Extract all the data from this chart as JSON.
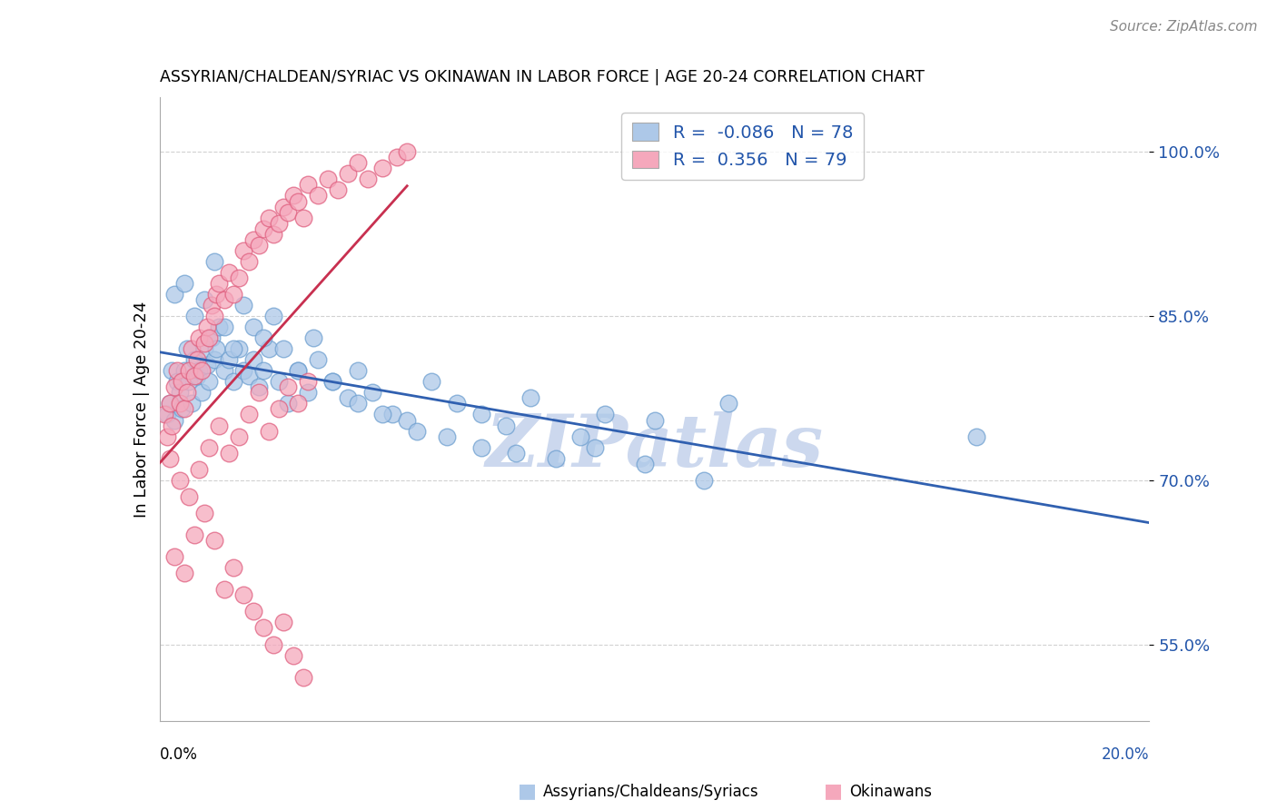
{
  "title": "ASSYRIAN/CHALDEAN/SYRIAC VS OKINAWAN IN LABOR FORCE | AGE 20-24 CORRELATION CHART",
  "source_text": "Source: ZipAtlas.com",
  "ylabel": "In Labor Force | Age 20-24",
  "xlim": [
    0.0,
    20.0
  ],
  "ylim": [
    48.0,
    105.0
  ],
  "yticks": [
    55.0,
    70.0,
    85.0,
    100.0
  ],
  "ytick_labels": [
    "55.0%",
    "70.0%",
    "85.0%",
    "100.0%"
  ],
  "blue_R": -0.086,
  "blue_N": 78,
  "pink_R": 0.356,
  "pink_N": 79,
  "blue_color": "#adc8e8",
  "blue_edge": "#6fa0d0",
  "pink_color": "#f5a8bc",
  "pink_edge": "#e06080",
  "blue_line_color": "#3060b0",
  "pink_line_color": "#c83050",
  "watermark": "ZIPatlas",
  "watermark_color": "#ccd8ee",
  "footer_label_left": "Assyrians/Chaldeans/Syriacs",
  "footer_label_right": "Okinawans",
  "blue_scatter_x": [
    0.15,
    0.2,
    0.25,
    0.3,
    0.35,
    0.4,
    0.45,
    0.5,
    0.55,
    0.6,
    0.65,
    0.7,
    0.75,
    0.8,
    0.85,
    0.9,
    0.95,
    1.0,
    1.05,
    1.1,
    1.15,
    1.2,
    1.3,
    1.4,
    1.5,
    1.6,
    1.7,
    1.8,
    1.9,
    2.0,
    2.1,
    2.2,
    2.4,
    2.6,
    2.8,
    3.0,
    3.2,
    3.5,
    3.8,
    4.0,
    4.3,
    4.7,
    5.0,
    5.5,
    6.0,
    6.5,
    7.0,
    7.5,
    8.5,
    9.0,
    10.0,
    11.5,
    16.5,
    0.3,
    0.5,
    0.7,
    0.9,
    1.1,
    1.3,
    1.5,
    1.7,
    1.9,
    2.1,
    2.3,
    2.5,
    2.8,
    3.1,
    3.5,
    4.0,
    4.5,
    5.2,
    5.8,
    6.5,
    7.2,
    8.0,
    8.8,
    9.8,
    11.0
  ],
  "blue_scatter_y": [
    76.0,
    77.0,
    80.0,
    75.5,
    79.0,
    78.0,
    76.5,
    80.0,
    82.0,
    79.0,
    77.0,
    81.0,
    79.5,
    80.0,
    78.0,
    82.0,
    80.5,
    79.0,
    83.0,
    81.0,
    82.0,
    84.0,
    80.0,
    81.0,
    79.0,
    82.0,
    80.0,
    79.5,
    81.0,
    78.5,
    80.0,
    82.0,
    79.0,
    77.0,
    80.0,
    78.0,
    81.0,
    79.0,
    77.5,
    80.0,
    78.0,
    76.0,
    75.5,
    79.0,
    77.0,
    76.0,
    75.0,
    77.5,
    74.0,
    76.0,
    75.5,
    77.0,
    74.0,
    87.0,
    88.0,
    85.0,
    86.5,
    90.0,
    84.0,
    82.0,
    86.0,
    84.0,
    83.0,
    85.0,
    82.0,
    80.0,
    83.0,
    79.0,
    77.0,
    76.0,
    74.5,
    74.0,
    73.0,
    72.5,
    72.0,
    73.0,
    71.5,
    70.0
  ],
  "pink_scatter_x": [
    0.1,
    0.15,
    0.2,
    0.25,
    0.3,
    0.35,
    0.4,
    0.45,
    0.5,
    0.55,
    0.6,
    0.65,
    0.7,
    0.75,
    0.8,
    0.85,
    0.9,
    0.95,
    1.0,
    1.05,
    1.1,
    1.15,
    1.2,
    1.3,
    1.4,
    1.5,
    1.6,
    1.7,
    1.8,
    1.9,
    2.0,
    2.1,
    2.2,
    2.3,
    2.4,
    2.5,
    2.6,
    2.7,
    2.8,
    2.9,
    3.0,
    3.2,
    3.4,
    3.6,
    3.8,
    4.0,
    4.2,
    4.5,
    4.8,
    5.0,
    0.2,
    0.4,
    0.6,
    0.8,
    1.0,
    1.2,
    1.4,
    1.6,
    1.8,
    2.0,
    2.2,
    2.4,
    2.6,
    2.8,
    3.0,
    0.3,
    0.5,
    0.7,
    0.9,
    1.1,
    1.3,
    1.5,
    1.7,
    1.9,
    2.1,
    2.3,
    2.5,
    2.7,
    2.9
  ],
  "pink_scatter_y": [
    76.0,
    74.0,
    77.0,
    75.0,
    78.5,
    80.0,
    77.0,
    79.0,
    76.5,
    78.0,
    80.0,
    82.0,
    79.5,
    81.0,
    83.0,
    80.0,
    82.5,
    84.0,
    83.0,
    86.0,
    85.0,
    87.0,
    88.0,
    86.5,
    89.0,
    87.0,
    88.5,
    91.0,
    90.0,
    92.0,
    91.5,
    93.0,
    94.0,
    92.5,
    93.5,
    95.0,
    94.5,
    96.0,
    95.5,
    94.0,
    97.0,
    96.0,
    97.5,
    96.5,
    98.0,
    99.0,
    97.5,
    98.5,
    99.5,
    100.0,
    72.0,
    70.0,
    68.5,
    71.0,
    73.0,
    75.0,
    72.5,
    74.0,
    76.0,
    78.0,
    74.5,
    76.5,
    78.5,
    77.0,
    79.0,
    63.0,
    61.5,
    65.0,
    67.0,
    64.5,
    60.0,
    62.0,
    59.5,
    58.0,
    56.5,
    55.0,
    57.0,
    54.0,
    52.0
  ]
}
